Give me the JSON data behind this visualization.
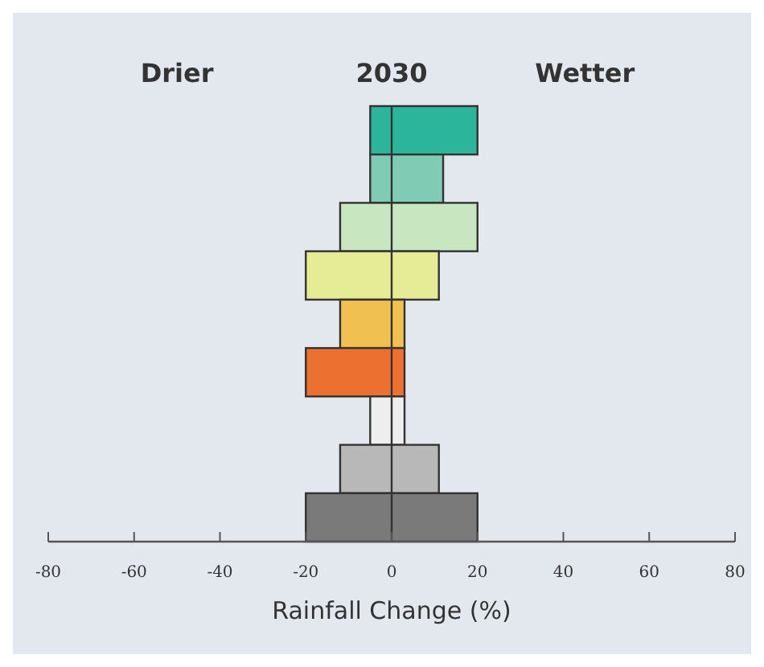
{
  "chart_data": {
    "type": "bar",
    "orientation": "horizontal",
    "title": "2030",
    "annotations": [
      "Drier",
      "Wetter"
    ],
    "xlabel": "Rainfall Change (%)",
    "categories": [
      null,
      null,
      null,
      null,
      null,
      null,
      null,
      null,
      null
    ],
    "base": [
      -5,
      -5,
      -12,
      -20,
      -12,
      -20,
      -5,
      -12,
      -20
    ],
    "values": [
      25,
      17,
      32,
      31,
      15,
      23,
      8,
      23,
      40
    ],
    "colors": [
      "#2bb59a",
      "#7fcbb3",
      "#c8e6c0",
      "#e6eb95",
      "#f0c050",
      "#ec7030",
      "#eeeeee",
      "#b8b8b8",
      "#7a7a7a"
    ],
    "xlim": [
      -80,
      80
    ],
    "xticks": [
      -80,
      -60,
      -40,
      -20,
      0,
      20,
      40,
      60,
      80
    ],
    "tick_labels": "x",
    "grid": false,
    "ref_lines": [
      {
        "axis": "x",
        "value": 0,
        "color": "#333333"
      }
    ]
  }
}
